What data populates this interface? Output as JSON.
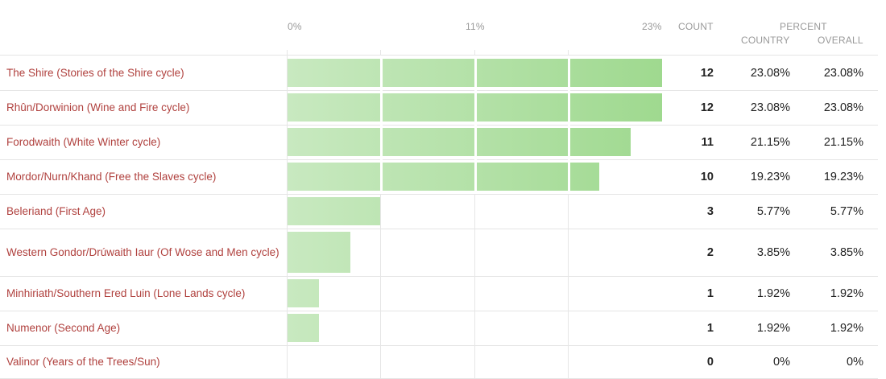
{
  "chart_data": {
    "type": "bar",
    "orientation": "horizontal",
    "axis_ticks": [
      "0%",
      "11%",
      "23%"
    ],
    "xlim": [
      0,
      23.08
    ],
    "columns": {
      "count": "COUNT",
      "percent": "PERCENT",
      "country": "COUNTRY",
      "overall": "OVERALL"
    },
    "rows": [
      {
        "label": "The Shire (Stories of the Shire cycle)",
        "count": "12",
        "country": "23.08%",
        "overall": "23.08%",
        "value": 23.08
      },
      {
        "label": "Rhûn/Dorwinion (Wine and Fire cycle)",
        "count": "12",
        "country": "23.08%",
        "overall": "23.08%",
        "value": 23.08
      },
      {
        "label": "Forodwaith (White Winter cycle)",
        "count": "11",
        "country": "21.15%",
        "overall": "21.15%",
        "value": 21.15
      },
      {
        "label": "Mordor/Nurn/Khand (Free the Slaves cycle)",
        "count": "10",
        "country": "19.23%",
        "overall": "19.23%",
        "value": 19.23
      },
      {
        "label": "Beleriand (First Age)",
        "count": "3",
        "country": "5.77%",
        "overall": "5.77%",
        "value": 5.77
      },
      {
        "label": "Western Gondor/Drúwaith Iaur (Of Wose and Men cycle)",
        "count": "2",
        "country": "3.85%",
        "overall": "3.85%",
        "value": 3.85
      },
      {
        "label": "Minhiriath/Southern Ered Luin (Lone Lands cycle)",
        "count": "1",
        "country": "1.92%",
        "overall": "1.92%",
        "value": 1.92
      },
      {
        "label": "Numenor (Second Age)",
        "count": "1",
        "country": "1.92%",
        "overall": "1.92%",
        "value": 1.92
      },
      {
        "label": "Valinor (Years of the Trees/Sun)",
        "count": "0",
        "country": "0%",
        "overall": "0%",
        "value": 0
      }
    ],
    "colors": {
      "bar_start": "#c8e9c0",
      "bar_end": "#9fd98f",
      "label": "#b0413e"
    }
  }
}
